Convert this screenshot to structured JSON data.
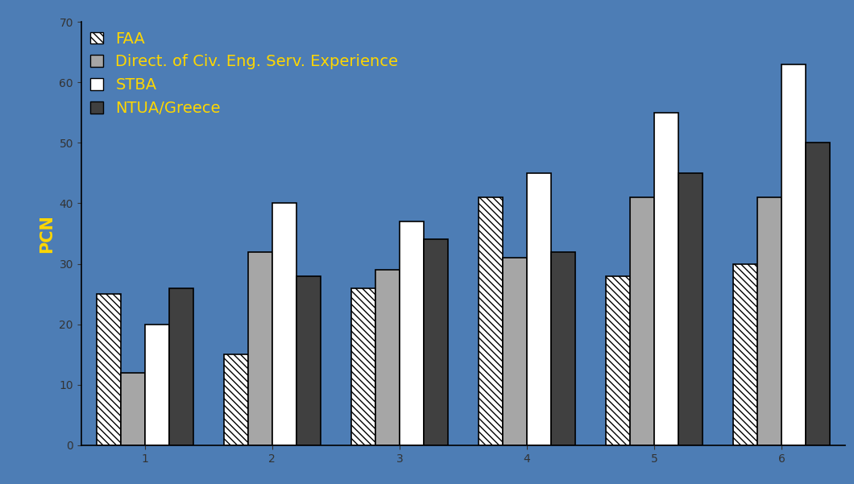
{
  "chart_data": {
    "type": "bar",
    "y_label": "PCN",
    "categories": [
      "1",
      "2",
      "3",
      "4",
      "5",
      "6"
    ],
    "series": [
      {
        "name": "FAA",
        "color": "#ffffff",
        "values": [
          25,
          15,
          26,
          41,
          28,
          30
        ]
      },
      {
        "name": "Direct. of Civ. Eng. Serv. Experience",
        "color": "#a6a6a6",
        "values": [
          12,
          32,
          29,
          31,
          41,
          41
        ]
      },
      {
        "name": "STBA",
        "color": "#ffffff",
        "values": [
          20,
          40,
          37,
          45,
          55,
          63
        ]
      },
      {
        "name": "NTUA/Greece",
        "color": "#404040",
        "values": [
          26,
          28,
          34,
          32,
          45,
          50
        ]
      }
    ],
    "ylim": [
      0,
      70
    ],
    "yticks": [
      0,
      10,
      20,
      30,
      40,
      50,
      60,
      70
    ],
    "grid": false,
    "legend": "upper left"
  }
}
